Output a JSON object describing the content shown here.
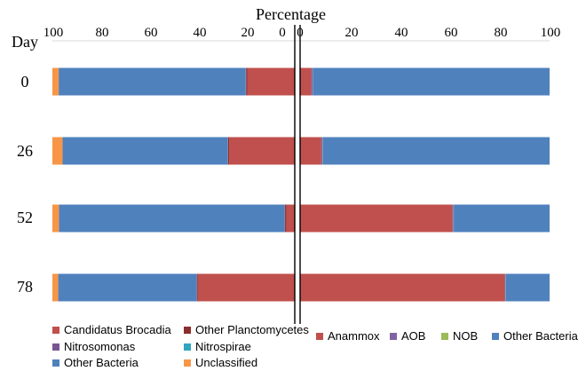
{
  "chart_data": {
    "type": "bar",
    "orientation": "horizontal",
    "stacked": true,
    "title": "Percentage",
    "category_axis_title": "Day",
    "categories": [
      "0",
      "26",
      "52",
      "78"
    ],
    "x_ticks_left": [
      "100",
      "80",
      "60",
      "40",
      "20",
      "0"
    ],
    "x_ticks_right": [
      "0",
      "20",
      "40",
      "60",
      "80",
      "100"
    ],
    "left_panel": {
      "xlim": [
        100,
        0
      ],
      "series": [
        {
          "name": "Candidatus Brocadia",
          "color": "#c0504d",
          "values": [
            19.5,
            27,
            3.5,
            40
          ]
        },
        {
          "name": "Other Planctomycetes",
          "color": "#8b2d2a",
          "values": [
            0.5,
            0.5,
            0.5,
            0.3
          ]
        },
        {
          "name": "Nitrosomonas",
          "color": "#7a5592",
          "values": [
            0.3,
            0.2,
            0.2,
            0.2
          ]
        },
        {
          "name": "Nitrospirae",
          "color": "#31a6c0",
          "values": [
            0.1,
            0.1,
            0.1,
            0.1
          ]
        },
        {
          "name": "Other Bacteria",
          "color": "#4f81bd",
          "values": [
            77,
            68,
            93,
            57
          ]
        },
        {
          "name": "Unclassified",
          "color": "#f79646",
          "values": [
            2.6,
            4.2,
            2.7,
            2.4
          ]
        }
      ]
    },
    "right_panel": {
      "xlim": [
        0,
        100
      ],
      "series": [
        {
          "name": "Anammox",
          "color": "#c0504d",
          "values": [
            4.5,
            8.5,
            61,
            82
          ]
        },
        {
          "name": "AOB",
          "color": "#8064a2",
          "values": [
            0.5,
            0.5,
            0.5,
            0.3
          ]
        },
        {
          "name": "NOB",
          "color": "#9bbb59",
          "values": [
            0.1,
            0.1,
            0.1,
            0.1
          ]
        },
        {
          "name": "Other Bacteria",
          "color": "#4f81bd",
          "values": [
            94.9,
            90.9,
            38.4,
            17.6
          ]
        }
      ]
    },
    "legend_left": [
      "Candidatus Brocadia",
      "Other Planctomycetes",
      "Nitrosomonas",
      "Nitrospirae",
      "Other Bacteria",
      "Unclassified"
    ],
    "legend_right": [
      "Anammox",
      "AOB",
      "NOB",
      "Other Bacteria"
    ]
  }
}
